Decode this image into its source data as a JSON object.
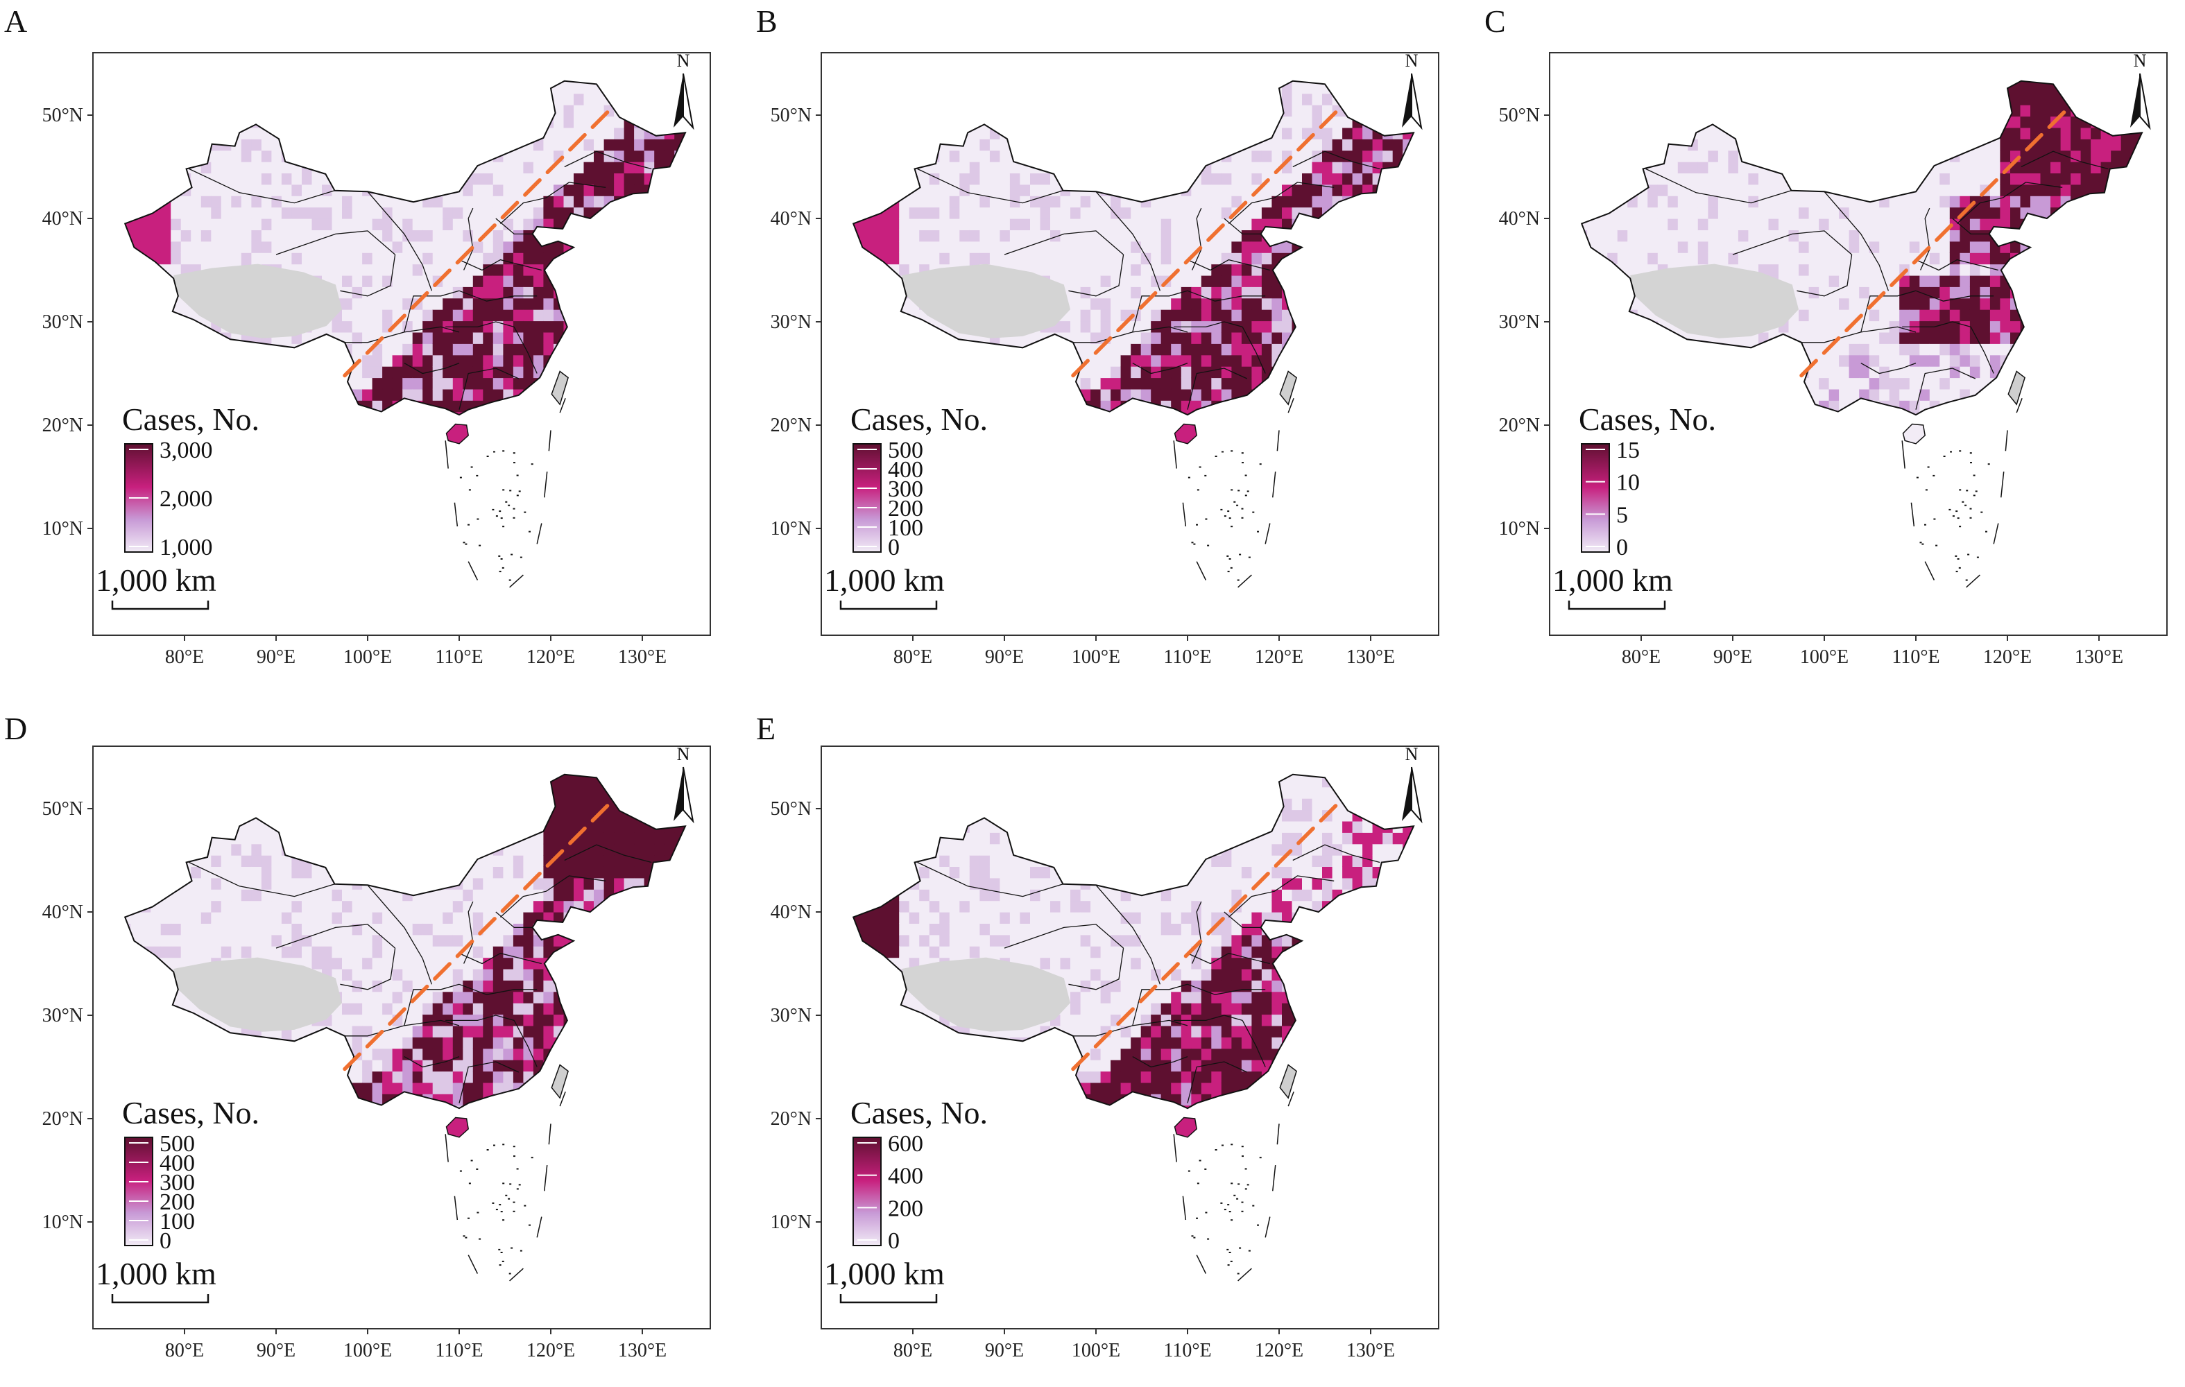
{
  "figure": {
    "x_ticks": [
      "80°E",
      "90°E",
      "100°E",
      "110°E",
      "120°E",
      "130°E"
    ],
    "y_ticks": [
      "50°N",
      "40°N",
      "30°N",
      "20°N",
      "10°N"
    ],
    "north_label": "N",
    "scale_label": "1,000 km",
    "legend_title": "Cases, No.",
    "boundary_line_color": "#f07030",
    "unmapped_color": "#d4d4d4",
    "palette": [
      "#f2ecf6",
      "#ddc8e6",
      "#c89ad6",
      "#d85fb8",
      "#c8207e",
      "#5e1030"
    ]
  },
  "panels": [
    {
      "letter": "A",
      "legend_labels": [
        "3,000",
        "2,000",
        "1,000"
      ],
      "intensity": "high"
    },
    {
      "letter": "B",
      "legend_labels": [
        "500",
        "400",
        "300",
        "200",
        "100",
        "0"
      ],
      "intensity": "high"
    },
    {
      "letter": "C",
      "legend_labels": [
        "15",
        "10",
        "5",
        "0"
      ],
      "intensity": "north"
    },
    {
      "letter": "D",
      "legend_labels": [
        "500",
        "400",
        "300",
        "200",
        "100",
        "0"
      ],
      "intensity": "mixed"
    },
    {
      "letter": "E",
      "legend_labels": [
        "600",
        "400",
        "200",
        "0"
      ],
      "intensity": "south"
    }
  ]
}
